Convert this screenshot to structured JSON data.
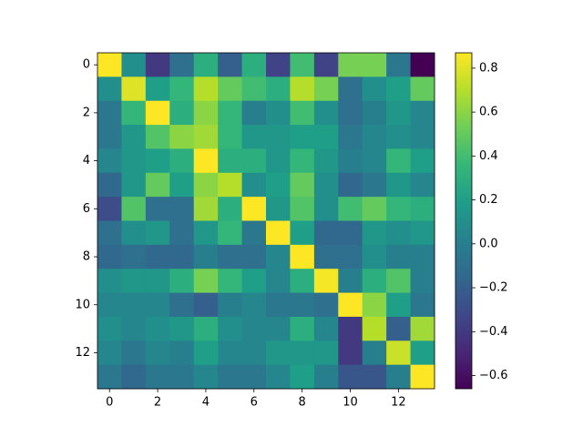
{
  "chart_data": {
    "type": "heatmap",
    "colormap": "viridis",
    "clim": [
      -0.66,
      0.87
    ],
    "xlim": [
      -0.5,
      13.5
    ],
    "ylim": [
      13.5,
      -0.5
    ],
    "xticks": [
      0,
      2,
      4,
      6,
      8,
      10,
      12
    ],
    "yticks": [
      0,
      2,
      4,
      6,
      8,
      10,
      12
    ],
    "colorbar_ticks": [
      {
        "value": -0.6,
        "label": "−0.6"
      },
      {
        "value": -0.4,
        "label": "−0.4"
      },
      {
        "value": -0.2,
        "label": "−0.2"
      },
      {
        "value": 0,
        "label": "0.0"
      },
      0.2,
      0.4,
      0.6,
      0.8
    ],
    "z": [
      [
        0.87,
        0.1,
        -0.4,
        -0.1,
        0.3,
        -0.2,
        0.3,
        -0.35,
        0.4,
        -0.35,
        0.55,
        0.55,
        -0.05,
        -0.66
      ],
      [
        0.1,
        0.8,
        0.2,
        0.35,
        0.7,
        0.5,
        0.4,
        0.3,
        0.7,
        0.55,
        -0.1,
        0.1,
        0.2,
        0.5
      ],
      [
        -0.05,
        0.35,
        0.87,
        0.3,
        0.6,
        0.35,
        0.0,
        0.1,
        0.4,
        0.1,
        -0.1,
        0.0,
        0.15,
        0.05
      ],
      [
        -0.05,
        0.15,
        0.45,
        0.6,
        0.65,
        0.35,
        0.15,
        0.15,
        0.2,
        0.2,
        -0.05,
        0.05,
        0.1,
        0.05
      ],
      [
        0.05,
        0.15,
        0.2,
        0.3,
        0.87,
        0.3,
        0.3,
        0.15,
        0.35,
        0.15,
        0.0,
        0.05,
        0.35,
        0.2
      ],
      [
        -0.15,
        0.15,
        0.5,
        0.2,
        0.6,
        0.7,
        0.1,
        0.2,
        0.5,
        0.1,
        -0.15,
        -0.05,
        0.15,
        0.05
      ],
      [
        -0.3,
        0.45,
        -0.1,
        -0.1,
        0.65,
        0.3,
        0.87,
        0.15,
        0.45,
        0.1,
        0.4,
        0.5,
        0.35,
        0.3
      ],
      [
        -0.1,
        0.1,
        0.15,
        -0.1,
        0.15,
        0.35,
        -0.05,
        0.87,
        0.2,
        -0.15,
        -0.15,
        0.15,
        0.1,
        0.15
      ],
      [
        -0.15,
        -0.1,
        -0.15,
        -0.15,
        0.0,
        -0.1,
        -0.1,
        0.05,
        0.87,
        -0.1,
        -0.1,
        0.1,
        0.0,
        0.0
      ],
      [
        0.1,
        0.15,
        0.15,
        0.3,
        0.55,
        0.35,
        0.2,
        0.05,
        0.3,
        0.85,
        0.0,
        0.3,
        0.45,
        0.0
      ],
      [
        0.05,
        0.05,
        0.05,
        -0.1,
        -0.2,
        0.0,
        0.05,
        -0.05,
        -0.05,
        -0.1,
        0.87,
        0.6,
        0.2,
        -0.05
      ],
      [
        0.1,
        0.05,
        0.1,
        0.15,
        0.3,
        0.1,
        0.05,
        0.05,
        0.3,
        0.05,
        -0.4,
        0.7,
        -0.2,
        0.65
      ],
      [
        0.05,
        -0.05,
        0.05,
        0.0,
        0.2,
        0.05,
        0.05,
        0.15,
        0.15,
        0.15,
        -0.4,
        0.0,
        0.75,
        0.2
      ],
      [
        -0.05,
        -0.15,
        -0.05,
        -0.05,
        0.05,
        -0.05,
        -0.05,
        0.05,
        0.2,
        0.0,
        -0.25,
        -0.25,
        0.0,
        0.87
      ]
    ]
  }
}
